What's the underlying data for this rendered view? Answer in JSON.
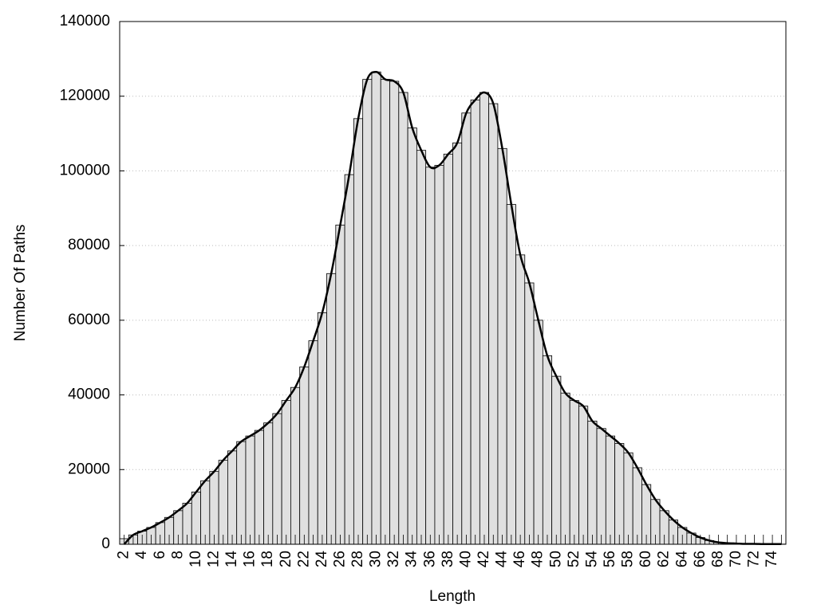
{
  "chart_data": {
    "type": "bar",
    "x_label": "Length",
    "y_label": "Number Of Paths",
    "categories": [
      "2",
      null,
      "4",
      null,
      "6",
      null,
      "8",
      null,
      "10",
      null,
      "12",
      null,
      "14",
      null,
      "16",
      null,
      "18",
      null,
      "20",
      null,
      "22",
      null,
      "24",
      null,
      "26",
      null,
      "28",
      null,
      "30",
      null,
      "32",
      null,
      "34",
      null,
      "36",
      null,
      "38",
      null,
      "40",
      null,
      "42",
      null,
      "44",
      null,
      "46",
      null,
      "48",
      null,
      "50",
      null,
      "52",
      null,
      "54",
      null,
      "56",
      null,
      "58",
      null,
      "60",
      null,
      "62",
      null,
      "64",
      null,
      "66",
      null,
      "68",
      null,
      "70",
      null,
      "72",
      null,
      "74",
      null
    ],
    "series": [
      {
        "type": "bar",
        "color": "#e0e0e0",
        "values": [
          1500,
          2500,
          3500,
          4500,
          5800,
          7200,
          9000,
          11000,
          14000,
          17000,
          19500,
          22500,
          25000,
          27500,
          29000,
          30500,
          32500,
          35000,
          38500,
          42000,
          47500,
          54500,
          62000,
          72500,
          85500,
          99000,
          114000,
          124500,
          126500,
          124500,
          124000,
          121000,
          111500,
          105500,
          101000,
          101500,
          104500,
          107500,
          115500,
          119000,
          121000,
          118000,
          106000,
          91000,
          77500,
          70000,
          60000,
          50500,
          45000,
          40500,
          38500,
          37000,
          33000,
          31000,
          29000,
          27000,
          24500,
          20500,
          16000,
          12000,
          9000,
          6500,
          4500,
          3000,
          1800,
          1000,
          500,
          300,
          200,
          100,
          100,
          50,
          50,
          50
        ]
      },
      {
        "type": "line",
        "color": "#000000",
        "values": [
          0,
          2500,
          3500,
          4500,
          5800,
          7200,
          9000,
          11000,
          14000,
          17000,
          19500,
          22500,
          25000,
          27500,
          29000,
          30500,
          32500,
          35000,
          38500,
          42000,
          47500,
          54500,
          62000,
          72500,
          85500,
          99000,
          114000,
          124500,
          126500,
          124500,
          124000,
          121000,
          111500,
          105500,
          101000,
          101500,
          104500,
          107500,
          115500,
          119000,
          121000,
          118000,
          106000,
          91000,
          77500,
          70000,
          60000,
          50500,
          45000,
          40500,
          38500,
          37000,
          33000,
          31000,
          29000,
          27000,
          24500,
          20500,
          16000,
          12000,
          9000,
          6500,
          4500,
          3000,
          1800,
          1000,
          500,
          300,
          200,
          100,
          100,
          50,
          50,
          50
        ]
      }
    ],
    "ylim": [
      0,
      140000
    ],
    "yticks": [
      0,
      20000,
      40000,
      60000,
      80000,
      100000,
      120000,
      140000
    ],
    "grid": true
  }
}
